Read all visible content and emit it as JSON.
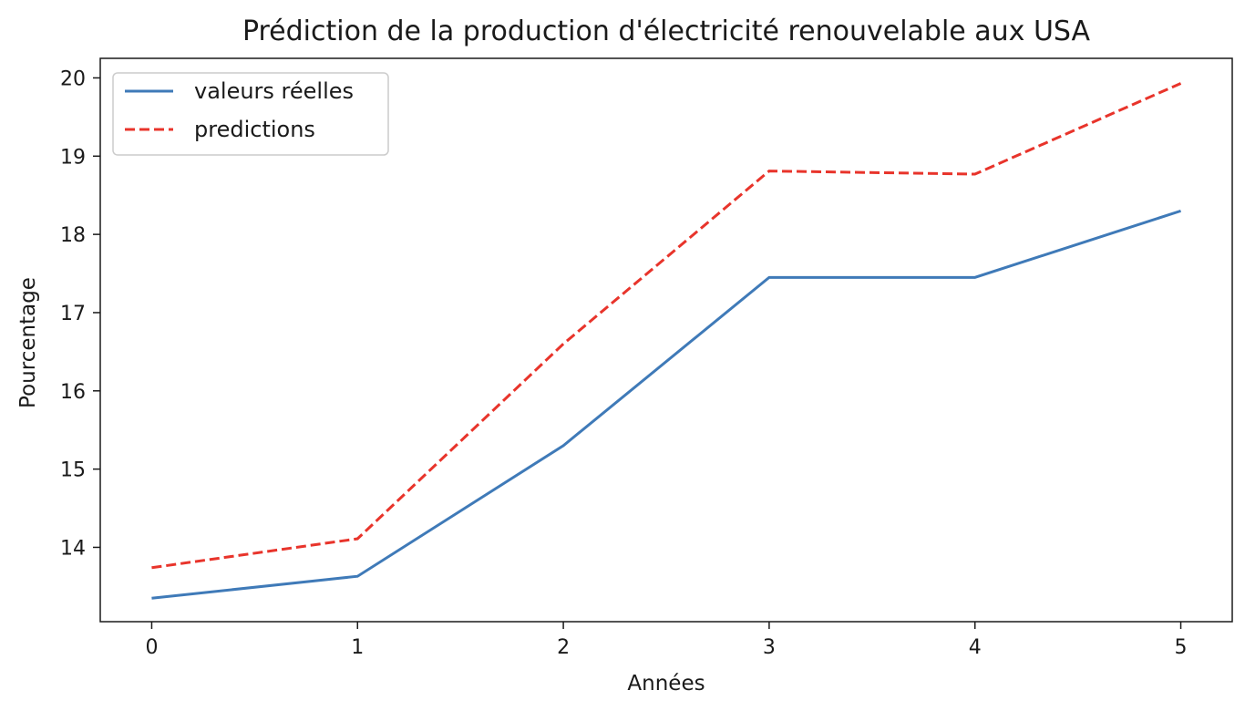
{
  "chart_data": {
    "type": "line",
    "title": "Prédiction de la production d'électricité renouvelable aux USA",
    "xlabel": "Années",
    "ylabel": "Pourcentage",
    "x": [
      0,
      1,
      2,
      3,
      4,
      5
    ],
    "xlim": [
      -0.25,
      5.25
    ],
    "ylim": [
      13.05,
      20.25
    ],
    "xticks": [
      "0",
      "1",
      "2",
      "3",
      "4",
      "5"
    ],
    "yticks": [
      "14",
      "15",
      "16",
      "17",
      "18",
      "19",
      "20"
    ],
    "grid": false,
    "legend_position": "top-left",
    "series": [
      {
        "name": "valeurs réelles",
        "values": [
          13.35,
          13.63,
          15.3,
          17.45,
          17.45,
          18.3
        ],
        "color": "#3f7ab8",
        "style": "solid"
      },
      {
        "name": "predictions",
        "values": [
          13.74,
          14.11,
          16.6,
          18.81,
          18.77,
          19.93
        ],
        "color": "#e8342b",
        "style": "dashed"
      }
    ]
  }
}
